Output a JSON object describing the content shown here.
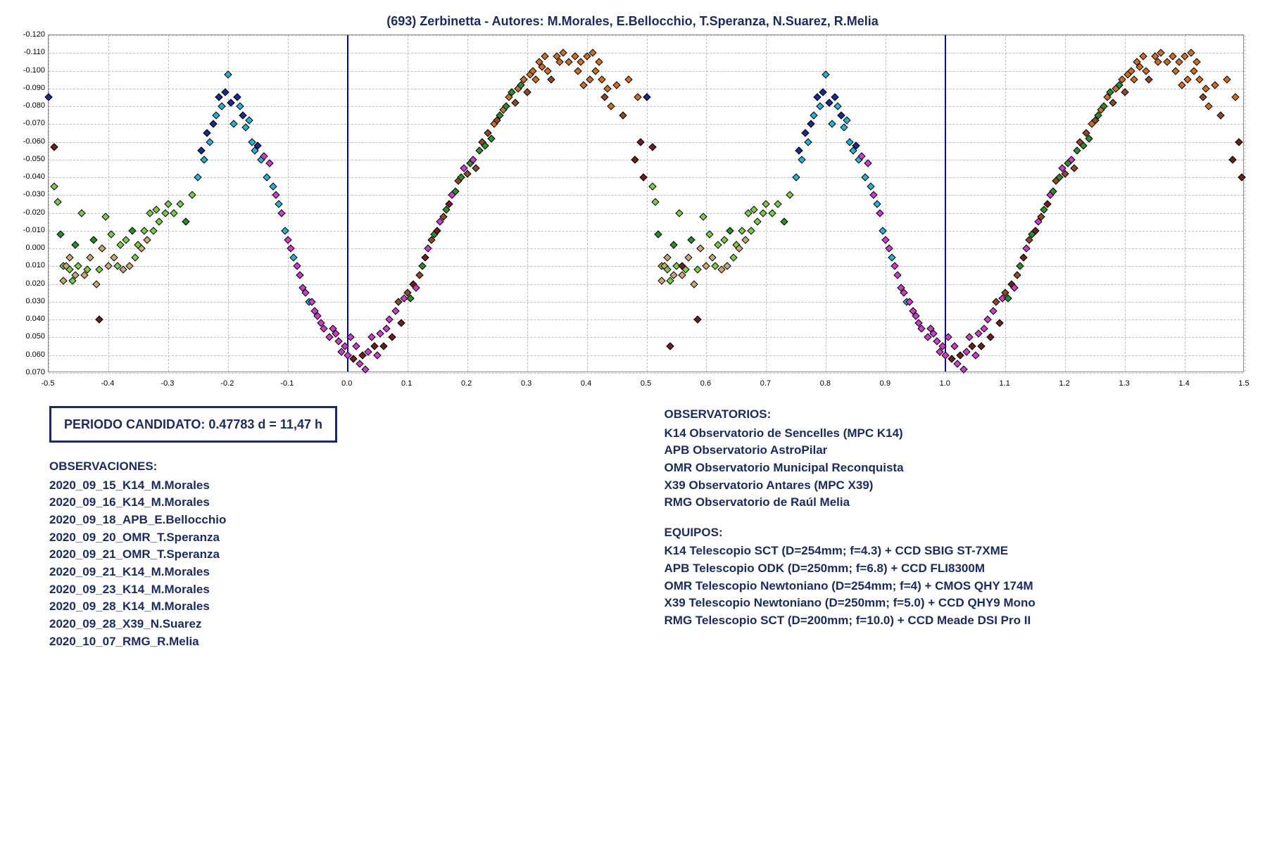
{
  "title": "(693) Zerbinetta - Autores: M.Morales, E.Bellocchio, T.Speranza, N.Suarez, R.Melia",
  "chart": {
    "type": "scatter",
    "background_color": "#ffffff",
    "grid_color": "#bfbfbf",
    "axis_color": "#888888",
    "label_color": "#000000",
    "label_fontsize": 11,
    "title_fontsize": 18,
    "title_color": "#1a2b5c",
    "phase_line_color": "#0000cc",
    "phase_lines": [
      0.0,
      1.0
    ],
    "xlim": [
      -0.5,
      1.5
    ],
    "xticks": [
      -0.5,
      -0.4,
      -0.3,
      -0.2,
      -0.1,
      0.0,
      0.1,
      0.2,
      0.3,
      0.4,
      0.5,
      0.6,
      0.7,
      0.8,
      0.9,
      1.0,
      1.1,
      1.2,
      1.3,
      1.4,
      1.5
    ],
    "ylim": [
      0.07,
      -0.12
    ],
    "yticks": [
      -0.12,
      -0.11,
      -0.1,
      -0.09,
      -0.08,
      -0.07,
      -0.06,
      -0.05,
      -0.04,
      -0.03,
      -0.02,
      -0.01,
      0.0,
      0.01,
      0.02,
      0.03,
      0.04,
      0.05,
      0.06,
      0.07
    ],
    "marker_style": "diamond",
    "marker_size": 8,
    "series_colors": {
      "s1_navy": "#1a2b8c",
      "s2_cyan": "#2bb0d0",
      "s3_magenta": "#c83fc8",
      "s4_darkred": "#6b1f1f",
      "s5_green": "#2d8a2d",
      "s6_lime": "#7fc850",
      "s7_tan": "#c8a878",
      "s8_orange": "#c86f2b",
      "s9_brown": "#8b4a2b"
    },
    "data_base": [
      {
        "x": -0.5,
        "y": -0.085,
        "s": "s1_navy"
      },
      {
        "x": -0.49,
        "y": -0.057,
        "s": "s4_darkred"
      },
      {
        "x": -0.49,
        "y": -0.035,
        "s": "s6_lime"
      },
      {
        "x": -0.485,
        "y": -0.026,
        "s": "s6_lime"
      },
      {
        "x": -0.48,
        "y": -0.008,
        "s": "s5_green"
      },
      {
        "x": -0.475,
        "y": 0.018,
        "s": "s7_tan"
      },
      {
        "x": -0.475,
        "y": 0.01,
        "s": "s6_lime"
      },
      {
        "x": -0.47,
        "y": 0.01,
        "s": "s7_tan"
      },
      {
        "x": -0.465,
        "y": 0.005,
        "s": "s7_tan"
      },
      {
        "x": -0.465,
        "y": 0.012,
        "s": "s6_lime"
      },
      {
        "x": -0.46,
        "y": 0.018,
        "s": "s6_lime"
      },
      {
        "x": -0.455,
        "y": -0.002,
        "s": "s5_green"
      },
      {
        "x": -0.455,
        "y": 0.015,
        "s": "s7_tan"
      },
      {
        "x": -0.45,
        "y": 0.01,
        "s": "s6_lime"
      },
      {
        "x": -0.445,
        "y": -0.02,
        "s": "s6_lime"
      },
      {
        "x": -0.44,
        "y": 0.015,
        "s": "s7_tan"
      },
      {
        "x": -0.435,
        "y": 0.012,
        "s": "s6_lime"
      },
      {
        "x": -0.43,
        "y": 0.005,
        "s": "s7_tan"
      },
      {
        "x": -0.425,
        "y": -0.005,
        "s": "s5_green"
      },
      {
        "x": -0.42,
        "y": 0.02,
        "s": "s7_tan"
      },
      {
        "x": -0.415,
        "y": 0.012,
        "s": "s6_lime"
      },
      {
        "x": -0.415,
        "y": 0.04,
        "s": "s4_darkred"
      },
      {
        "x": -0.41,
        "y": 0.0,
        "s": "s7_tan"
      },
      {
        "x": -0.405,
        "y": -0.018,
        "s": "s6_lime"
      },
      {
        "x": -0.4,
        "y": 0.01,
        "s": "s7_tan"
      },
      {
        "x": -0.395,
        "y": -0.008,
        "s": "s6_lime"
      },
      {
        "x": -0.39,
        "y": 0.005,
        "s": "s7_tan"
      },
      {
        "x": -0.385,
        "y": 0.01,
        "s": "s6_lime"
      },
      {
        "x": -0.38,
        "y": -0.002,
        "s": "s6_lime"
      },
      {
        "x": -0.375,
        "y": 0.012,
        "s": "s7_tan"
      },
      {
        "x": -0.37,
        "y": -0.005,
        "s": "s6_lime"
      },
      {
        "x": -0.365,
        "y": 0.01,
        "s": "s7_tan"
      },
      {
        "x": -0.36,
        "y": -0.01,
        "s": "s5_green"
      },
      {
        "x": -0.355,
        "y": 0.005,
        "s": "s6_lime"
      },
      {
        "x": -0.35,
        "y": -0.002,
        "s": "s6_lime"
      },
      {
        "x": -0.345,
        "y": 0.0,
        "s": "s7_tan"
      },
      {
        "x": -0.34,
        "y": -0.01,
        "s": "s6_lime"
      },
      {
        "x": -0.335,
        "y": -0.005,
        "s": "s7_tan"
      },
      {
        "x": -0.33,
        "y": -0.02,
        "s": "s6_lime"
      },
      {
        "x": -0.325,
        "y": -0.01,
        "s": "s6_lime"
      },
      {
        "x": -0.32,
        "y": -0.022,
        "s": "s6_lime"
      },
      {
        "x": -0.315,
        "y": -0.015,
        "s": "s6_lime"
      },
      {
        "x": -0.305,
        "y": -0.02,
        "s": "s6_lime"
      },
      {
        "x": -0.3,
        "y": -0.025,
        "s": "s6_lime"
      },
      {
        "x": -0.29,
        "y": -0.02,
        "s": "s6_lime"
      },
      {
        "x": -0.28,
        "y": -0.025,
        "s": "s6_lime"
      },
      {
        "x": -0.27,
        "y": -0.015,
        "s": "s5_green"
      },
      {
        "x": -0.26,
        "y": -0.03,
        "s": "s6_lime"
      },
      {
        "x": -0.25,
        "y": -0.04,
        "s": "s2_cyan"
      },
      {
        "x": -0.245,
        "y": -0.055,
        "s": "s1_navy"
      },
      {
        "x": -0.24,
        "y": -0.05,
        "s": "s2_cyan"
      },
      {
        "x": -0.235,
        "y": -0.065,
        "s": "s1_navy"
      },
      {
        "x": -0.23,
        "y": -0.06,
        "s": "s2_cyan"
      },
      {
        "x": -0.225,
        "y": -0.07,
        "s": "s1_navy"
      },
      {
        "x": -0.22,
        "y": -0.075,
        "s": "s2_cyan"
      },
      {
        "x": -0.215,
        "y": -0.085,
        "s": "s1_navy"
      },
      {
        "x": -0.21,
        "y": -0.08,
        "s": "s2_cyan"
      },
      {
        "x": -0.205,
        "y": -0.088,
        "s": "s1_navy"
      },
      {
        "x": -0.2,
        "y": -0.098,
        "s": "s2_cyan"
      },
      {
        "x": -0.195,
        "y": -0.082,
        "s": "s1_navy"
      },
      {
        "x": -0.19,
        "y": -0.07,
        "s": "s2_cyan"
      },
      {
        "x": -0.185,
        "y": -0.085,
        "s": "s1_navy"
      },
      {
        "x": -0.18,
        "y": -0.08,
        "s": "s2_cyan"
      },
      {
        "x": -0.175,
        "y": -0.075,
        "s": "s1_navy"
      },
      {
        "x": -0.17,
        "y": -0.068,
        "s": "s2_cyan"
      },
      {
        "x": -0.165,
        "y": -0.072,
        "s": "s2_cyan"
      },
      {
        "x": -0.16,
        "y": -0.06,
        "s": "s2_cyan"
      },
      {
        "x": -0.155,
        "y": -0.055,
        "s": "s2_cyan"
      },
      {
        "x": -0.15,
        "y": -0.058,
        "s": "s1_navy"
      },
      {
        "x": -0.145,
        "y": -0.05,
        "s": "s2_cyan"
      },
      {
        "x": -0.14,
        "y": -0.052,
        "s": "s3_magenta"
      },
      {
        "x": -0.135,
        "y": -0.04,
        "s": "s2_cyan"
      },
      {
        "x": -0.13,
        "y": -0.048,
        "s": "s3_magenta"
      },
      {
        "x": -0.125,
        "y": -0.035,
        "s": "s2_cyan"
      },
      {
        "x": -0.12,
        "y": -0.03,
        "s": "s3_magenta"
      },
      {
        "x": -0.115,
        "y": -0.025,
        "s": "s2_cyan"
      },
      {
        "x": -0.11,
        "y": -0.02,
        "s": "s3_magenta"
      },
      {
        "x": -0.105,
        "y": -0.01,
        "s": "s2_cyan"
      },
      {
        "x": -0.1,
        "y": -0.005,
        "s": "s3_magenta"
      },
      {
        "x": -0.095,
        "y": 0.0,
        "s": "s3_magenta"
      },
      {
        "x": -0.09,
        "y": 0.005,
        "s": "s2_cyan"
      },
      {
        "x": -0.085,
        "y": 0.01,
        "s": "s3_magenta"
      },
      {
        "x": -0.08,
        "y": 0.015,
        "s": "s3_magenta"
      },
      {
        "x": -0.075,
        "y": 0.022,
        "s": "s3_magenta"
      },
      {
        "x": -0.07,
        "y": 0.025,
        "s": "s3_magenta"
      },
      {
        "x": -0.065,
        "y": 0.03,
        "s": "s2_cyan"
      },
      {
        "x": -0.06,
        "y": 0.03,
        "s": "s3_magenta"
      },
      {
        "x": -0.055,
        "y": 0.035,
        "s": "s3_magenta"
      },
      {
        "x": -0.05,
        "y": 0.038,
        "s": "s3_magenta"
      },
      {
        "x": -0.045,
        "y": 0.042,
        "s": "s3_magenta"
      },
      {
        "x": -0.04,
        "y": 0.045,
        "s": "s3_magenta"
      },
      {
        "x": -0.03,
        "y": 0.05,
        "s": "s3_magenta"
      },
      {
        "x": -0.025,
        "y": 0.045,
        "s": "s3_magenta"
      },
      {
        "x": -0.02,
        "y": 0.048,
        "s": "s3_magenta"
      },
      {
        "x": -0.015,
        "y": 0.052,
        "s": "s3_magenta"
      },
      {
        "x": -0.01,
        "y": 0.058,
        "s": "s3_magenta"
      },
      {
        "x": -0.005,
        "y": 0.055,
        "s": "s3_magenta"
      },
      {
        "x": 0.0,
        "y": 0.06,
        "s": "s3_magenta"
      },
      {
        "x": 0.005,
        "y": 0.05,
        "s": "s3_magenta"
      },
      {
        "x": 0.01,
        "y": 0.062,
        "s": "s4_darkred"
      },
      {
        "x": 0.015,
        "y": 0.055,
        "s": "s3_magenta"
      },
      {
        "x": 0.02,
        "y": 0.065,
        "s": "s3_magenta"
      },
      {
        "x": 0.025,
        "y": 0.06,
        "s": "s4_darkred"
      },
      {
        "x": 0.03,
        "y": 0.068,
        "s": "s3_magenta"
      },
      {
        "x": 0.035,
        "y": 0.058,
        "s": "s3_magenta"
      },
      {
        "x": 0.04,
        "y": 0.05,
        "s": "s3_magenta"
      },
      {
        "x": 0.045,
        "y": 0.055,
        "s": "s4_darkred"
      },
      {
        "x": 0.05,
        "y": 0.06,
        "s": "s3_magenta"
      },
      {
        "x": 0.055,
        "y": 0.048,
        "s": "s3_magenta"
      },
      {
        "x": 0.06,
        "y": 0.055,
        "s": "s4_darkred"
      },
      {
        "x": 0.065,
        "y": 0.045,
        "s": "s3_magenta"
      },
      {
        "x": 0.07,
        "y": 0.04,
        "s": "s3_magenta"
      },
      {
        "x": 0.075,
        "y": 0.05,
        "s": "s4_darkred"
      },
      {
        "x": 0.08,
        "y": 0.035,
        "s": "s3_magenta"
      },
      {
        "x": 0.085,
        "y": 0.03,
        "s": "s9_brown"
      },
      {
        "x": 0.09,
        "y": 0.042,
        "s": "s4_darkred"
      },
      {
        "x": 0.095,
        "y": 0.028,
        "s": "s3_magenta"
      },
      {
        "x": 0.1,
        "y": 0.025,
        "s": "s9_brown"
      },
      {
        "x": 0.105,
        "y": 0.028,
        "s": "s5_green"
      },
      {
        "x": 0.11,
        "y": 0.02,
        "s": "s4_darkred"
      },
      {
        "x": 0.115,
        "y": 0.022,
        "s": "s3_magenta"
      },
      {
        "x": 0.12,
        "y": 0.015,
        "s": "s9_brown"
      },
      {
        "x": 0.125,
        "y": 0.01,
        "s": "s5_green"
      },
      {
        "x": 0.13,
        "y": 0.005,
        "s": "s4_darkred"
      },
      {
        "x": 0.135,
        "y": 0.0,
        "s": "s3_magenta"
      },
      {
        "x": 0.14,
        "y": -0.005,
        "s": "s9_brown"
      },
      {
        "x": 0.145,
        "y": -0.008,
        "s": "s5_green"
      },
      {
        "x": 0.15,
        "y": -0.01,
        "s": "s4_darkred"
      },
      {
        "x": 0.155,
        "y": -0.015,
        "s": "s3_magenta"
      },
      {
        "x": 0.16,
        "y": -0.018,
        "s": "s9_brown"
      },
      {
        "x": 0.165,
        "y": -0.022,
        "s": "s5_green"
      },
      {
        "x": 0.17,
        "y": -0.025,
        "s": "s4_darkred"
      },
      {
        "x": 0.175,
        "y": -0.03,
        "s": "s3_magenta"
      },
      {
        "x": 0.18,
        "y": -0.032,
        "s": "s5_green"
      },
      {
        "x": 0.185,
        "y": -0.038,
        "s": "s9_brown"
      },
      {
        "x": 0.19,
        "y": -0.04,
        "s": "s5_green"
      },
      {
        "x": 0.195,
        "y": -0.045,
        "s": "s3_magenta"
      },
      {
        "x": 0.2,
        "y": -0.042,
        "s": "s9_brown"
      },
      {
        "x": 0.205,
        "y": -0.048,
        "s": "s5_green"
      },
      {
        "x": 0.21,
        "y": -0.05,
        "s": "s3_magenta"
      },
      {
        "x": 0.215,
        "y": -0.045,
        "s": "s9_brown"
      },
      {
        "x": 0.22,
        "y": -0.055,
        "s": "s5_green"
      },
      {
        "x": 0.225,
        "y": -0.06,
        "s": "s9_brown"
      },
      {
        "x": 0.23,
        "y": -0.058,
        "s": "s5_green"
      },
      {
        "x": 0.235,
        "y": -0.065,
        "s": "s9_brown"
      },
      {
        "x": 0.24,
        "y": -0.062,
        "s": "s5_green"
      },
      {
        "x": 0.245,
        "y": -0.07,
        "s": "s8_orange"
      },
      {
        "x": 0.25,
        "y": -0.072,
        "s": "s9_brown"
      },
      {
        "x": 0.255,
        "y": -0.075,
        "s": "s5_green"
      },
      {
        "x": 0.26,
        "y": -0.078,
        "s": "s8_orange"
      },
      {
        "x": 0.265,
        "y": -0.08,
        "s": "s5_green"
      },
      {
        "x": 0.27,
        "y": -0.085,
        "s": "s8_orange"
      },
      {
        "x": 0.275,
        "y": -0.088,
        "s": "s5_green"
      },
      {
        "x": 0.28,
        "y": -0.082,
        "s": "s9_brown"
      },
      {
        "x": 0.285,
        "y": -0.09,
        "s": "s8_orange"
      },
      {
        "x": 0.29,
        "y": -0.092,
        "s": "s5_green"
      },
      {
        "x": 0.295,
        "y": -0.095,
        "s": "s8_orange"
      },
      {
        "x": 0.3,
        "y": -0.088,
        "s": "s9_brown"
      },
      {
        "x": 0.305,
        "y": -0.098,
        "s": "s8_orange"
      },
      {
        "x": 0.31,
        "y": -0.1,
        "s": "s8_orange"
      },
      {
        "x": 0.315,
        "y": -0.095,
        "s": "s8_orange"
      },
      {
        "x": 0.32,
        "y": -0.105,
        "s": "s8_orange"
      },
      {
        "x": 0.325,
        "y": -0.102,
        "s": "s8_orange"
      },
      {
        "x": 0.33,
        "y": -0.108,
        "s": "s8_orange"
      },
      {
        "x": 0.335,
        "y": -0.1,
        "s": "s8_orange"
      },
      {
        "x": 0.34,
        "y": -0.095,
        "s": "s9_brown"
      },
      {
        "x": 0.35,
        "y": -0.108,
        "s": "s8_orange"
      },
      {
        "x": 0.355,
        "y": -0.105,
        "s": "s8_orange"
      },
      {
        "x": 0.36,
        "y": -0.11,
        "s": "s8_orange"
      },
      {
        "x": 0.37,
        "y": -0.105,
        "s": "s8_orange"
      },
      {
        "x": 0.38,
        "y": -0.108,
        "s": "s8_orange"
      },
      {
        "x": 0.385,
        "y": -0.1,
        "s": "s8_orange"
      },
      {
        "x": 0.39,
        "y": -0.105,
        "s": "s8_orange"
      },
      {
        "x": 0.395,
        "y": -0.092,
        "s": "s8_orange"
      },
      {
        "x": 0.4,
        "y": -0.108,
        "s": "s8_orange"
      },
      {
        "x": 0.405,
        "y": -0.095,
        "s": "s8_orange"
      },
      {
        "x": 0.41,
        "y": -0.11,
        "s": "s8_orange"
      },
      {
        "x": 0.415,
        "y": -0.1,
        "s": "s8_orange"
      },
      {
        "x": 0.42,
        "y": -0.105,
        "s": "s8_orange"
      },
      {
        "x": 0.425,
        "y": -0.095,
        "s": "s8_orange"
      },
      {
        "x": 0.43,
        "y": -0.085,
        "s": "s9_brown"
      },
      {
        "x": 0.435,
        "y": -0.09,
        "s": "s8_orange"
      },
      {
        "x": 0.44,
        "y": -0.08,
        "s": "s8_orange"
      },
      {
        "x": 0.45,
        "y": -0.092,
        "s": "s8_orange"
      },
      {
        "x": 0.46,
        "y": -0.075,
        "s": "s9_brown"
      },
      {
        "x": 0.47,
        "y": -0.095,
        "s": "s8_orange"
      },
      {
        "x": 0.48,
        "y": -0.05,
        "s": "s4_darkred"
      },
      {
        "x": 0.485,
        "y": -0.085,
        "s": "s8_orange"
      },
      {
        "x": 0.49,
        "y": -0.06,
        "s": "s4_darkred"
      },
      {
        "x": 0.495,
        "y": -0.04,
        "s": "s4_darkred"
      },
      {
        "x": 0.54,
        "y": 0.055,
        "s": "s4_darkred"
      },
      {
        "x": 0.56,
        "y": 0.01,
        "s": "s4_darkred"
      }
    ]
  },
  "period_box": "PERIODO CANDIDATO: 0.47783 d = 11,47 h",
  "observations_heading": "OBSERVACIONES:",
  "observations": [
    "2020_09_15_K14_M.Morales",
    "2020_09_16_K14_M.Morales",
    "2020_09_18_APB_E.Bellocchio",
    "2020_09_20_OMR_T.Speranza",
    "2020_09_21_OMR_T.Speranza",
    "2020_09_21_K14_M.Morales",
    "2020_09_23_K14_M.Morales",
    "2020_09_28_K14_M.Morales",
    "2020_09_28_X39_N.Suarez",
    "2020_10_07_RMG_R.Melia"
  ],
  "observatories_heading": "OBSERVATORIOS:",
  "observatories": [
    "K14 Observatorio de Sencelles (MPC K14)",
    "APB Observatorio AstroPilar",
    "OMR Observatorio Municipal Reconquista",
    "X39 Observatorio Antares (MPC X39)",
    "RMG Observatorio de Raúl Melia"
  ],
  "equipment_heading": "EQUIPOS:",
  "equipment": [
    "K14 Telescopio SCT (D=254mm; f=4.3) + CCD SBIG ST-7XME",
    "APB Telescopio ODK (D=250mm; f=6.8) + CCD FLI8300M",
    "OMR Telescopio Newtoniano (D=254mm; f=4) + CMOS QHY 174M",
    "X39 Telescopio Newtoniano (D=250mm; f=5.0) + CCD QHY9 Mono",
    "RMG Telescopio SCT (D=200mm; f=10.0) + CCD Meade DSI Pro II"
  ]
}
